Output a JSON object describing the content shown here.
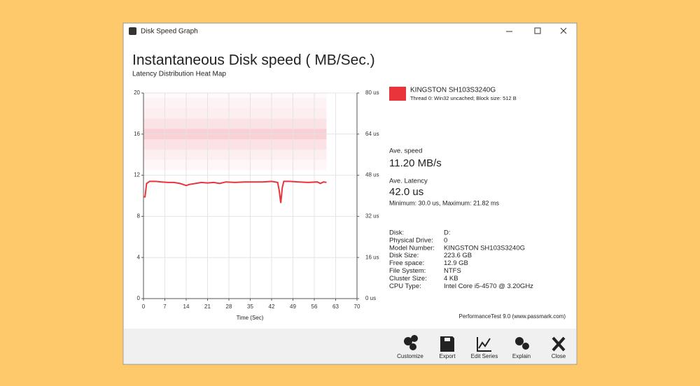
{
  "window": {
    "title": "Disk Speed Graph"
  },
  "header": {
    "title": "Instantaneous Disk speed ( MB/Sec.)",
    "subtitle": "Latency Distribution Heat Map"
  },
  "chart_data": {
    "type": "line",
    "x_label": "Time (Sec)",
    "x": [
      0,
      0.5,
      1,
      2,
      4,
      6,
      8,
      10,
      12,
      13,
      14,
      15,
      17,
      19,
      21,
      23,
      25,
      27,
      30,
      33,
      36,
      39,
      42,
      44,
      44.5,
      45,
      45.5,
      46,
      48,
      51,
      54,
      57,
      58,
      59,
      60
    ],
    "series": [
      {
        "name": "KINGSTON SH103S3240G",
        "color": "#e8343a",
        "values": [
          9.9,
          9.9,
          11.2,
          11.4,
          11.4,
          11.35,
          11.3,
          11.3,
          11.2,
          11.1,
          11.0,
          11.1,
          11.2,
          11.3,
          11.25,
          11.3,
          11.2,
          11.35,
          11.3,
          11.35,
          11.35,
          11.35,
          11.4,
          11.3,
          10.5,
          9.3,
          10.8,
          11.4,
          11.4,
          11.35,
          11.3,
          11.35,
          11.2,
          11.35,
          11.3
        ]
      }
    ],
    "xlim": [
      0,
      70
    ],
    "xticks": [
      0,
      7,
      14,
      21,
      28,
      35,
      42,
      49,
      56,
      63,
      70
    ],
    "ylim": [
      0,
      20
    ],
    "yticks": [
      0,
      4,
      8,
      12,
      16,
      20
    ],
    "y2lim": [
      0,
      80
    ],
    "y2ticks": [
      {
        "value": 0,
        "label": "0 us"
      },
      {
        "value": 16,
        "label": "16 us"
      },
      {
        "value": 32,
        "label": "32 us"
      },
      {
        "value": 48,
        "label": "48 us"
      },
      {
        "value": 64,
        "label": "64 us"
      },
      {
        "value": 80,
        "label": "80 us"
      }
    ],
    "grid": true,
    "heatmap": {
      "color": "#f08a94",
      "x_range": [
        0,
        60
      ],
      "latency_bins": [
        50,
        54,
        58,
        62,
        66,
        70,
        74,
        78,
        80
      ],
      "intensity": [
        0.08,
        0.15,
        0.25,
        0.4,
        0.25,
        0.15,
        0.1,
        0.05
      ]
    }
  },
  "legend": {
    "detail": "Thread 0: Win32 uncached; Block size: 512 B"
  },
  "stats": [
    {
      "label": "Ave. speed",
      "value": "11.20 MB/s"
    },
    {
      "label": "Ave. Latency",
      "value": "42.0 us"
    }
  ],
  "latency_range": "Minimum: 30.0 us, Maximum: 21.82 ms",
  "disk_info": [
    [
      "Disk:",
      "D:"
    ],
    [
      "Physical Drive:",
      "0"
    ],
    [
      "Model Number:",
      "KINGSTON SH103S3240G"
    ],
    [
      "Disk Size:",
      "223.6 GB"
    ],
    [
      "Free space:",
      "12.9 GB"
    ],
    [
      "File System:",
      "NTFS"
    ],
    [
      "Cluster Size:",
      "4 KB"
    ],
    [
      "CPU Type:",
      "Intel Core i5-4570 @ 3.20GHz"
    ]
  ],
  "footer": "PerformanceTest 9.0 (www.passmark.com)",
  "toolbar": [
    "Customize",
    "Export",
    "Edit Series",
    "Explain",
    "Close"
  ]
}
